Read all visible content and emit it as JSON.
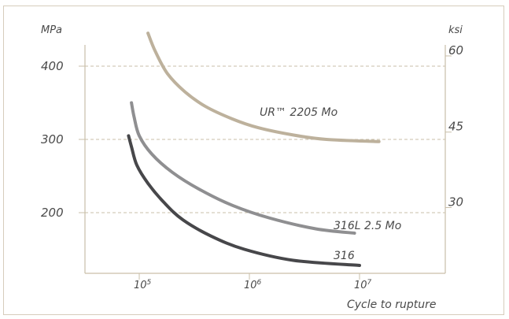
{
  "chart_data": {
    "type": "line",
    "title": "",
    "ylabel_left": "MPa",
    "ylabel_right": "ksi",
    "xlabel": "Cycle to rupture",
    "x_scale": "log",
    "xlim": [
      20000,
      50000000
    ],
    "ylim_mpa": [
      120,
      445
    ],
    "grid": "dashed horizontal at left ticks",
    "left_ticks": [
      {
        "label": "400",
        "value": 400
      },
      {
        "label": "300",
        "value": 300
      },
      {
        "label": "200",
        "value": 200
      }
    ],
    "right_ticks": [
      {
        "label": "60",
        "value": 60,
        "mpa": 414
      },
      {
        "label": "45",
        "value": 45,
        "mpa": 310
      },
      {
        "label": "30",
        "value": 30,
        "mpa": 207
      }
    ],
    "x_ticks": [
      {
        "base": "10",
        "exp": "5",
        "value": 100000
      },
      {
        "base": "10",
        "exp": "6",
        "value": 1000000
      },
      {
        "base": "10",
        "exp": "7",
        "value": 10000000
      }
    ],
    "series": [
      {
        "name": "UR™ 2205 Mo",
        "color": "#bdb19c",
        "points": [
          [
            120000,
            445
          ],
          [
            140000,
            420
          ],
          [
            180000,
            390
          ],
          [
            260000,
            365
          ],
          [
            400000,
            345
          ],
          [
            700000,
            328
          ],
          [
            1200000,
            316
          ],
          [
            2500000,
            306
          ],
          [
            5000000,
            300
          ],
          [
            15000000,
            297
          ]
        ]
      },
      {
        "name": "316L  2.5 Mo",
        "color": "#8f8f91",
        "points": [
          [
            85000,
            350
          ],
          [
            90000,
            330
          ],
          [
            100000,
            305
          ],
          [
            130000,
            280
          ],
          [
            200000,
            255
          ],
          [
            350000,
            232
          ],
          [
            700000,
            210
          ],
          [
            1500000,
            193
          ],
          [
            4000000,
            178
          ],
          [
            9000000,
            172
          ]
        ]
      },
      {
        "name": "316",
        "color": "#47474a",
        "points": [
          [
            80000,
            305
          ],
          [
            85000,
            290
          ],
          [
            95000,
            265
          ],
          [
            120000,
            240
          ],
          [
            170000,
            213
          ],
          [
            250000,
            190
          ],
          [
            450000,
            168
          ],
          [
            900000,
            150
          ],
          [
            2500000,
            135
          ],
          [
            10000000,
            128
          ]
        ]
      }
    ]
  }
}
